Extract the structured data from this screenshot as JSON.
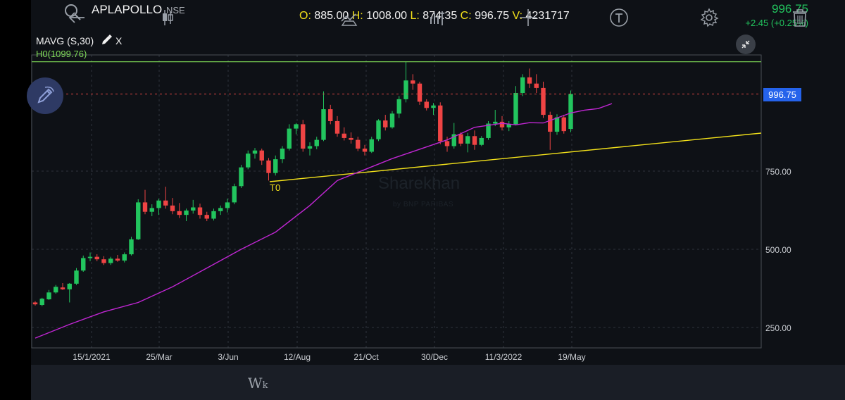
{
  "header": {
    "symbol": "APLAPOLLO",
    "exchange": "NSE",
    "ohlc": {
      "o_key": "O:",
      "o_val": "885.00",
      "h_key": "H:",
      "h_val": "1008.00",
      "l_key": "L:",
      "l_val": "874.35",
      "c_key": "C:",
      "c_val": "996.75",
      "v_key": "V:",
      "v_val": "4231717"
    },
    "last_price": "996.75",
    "change": "+2.45 (+0.25%)"
  },
  "indicator": {
    "label": "MAVG (S,30)",
    "close_label": "X",
    "hline_label": "H0(1099.76)",
    "trendline_label": "T0"
  },
  "watermark": {
    "brand": "Sharekhan",
    "sub": "by BNP PARIBAS"
  },
  "price_axis": {
    "current_price_tag": "996.75",
    "ticks": [
      "750.00",
      "500.00",
      "250.00"
    ]
  },
  "time_axis": {
    "ticks": [
      "15/1/2021",
      "25/Mar",
      "3/Jun",
      "12/Aug",
      "21/Oct",
      "30/Dec",
      "11/3/2022",
      "19/May"
    ]
  },
  "colors": {
    "up": "#22c55e",
    "down": "#ef4444",
    "mavg": "#c026d3",
    "hline": "#7ed957",
    "trendline": "#f4e21a",
    "price_tag": "#2563eb"
  },
  "toolbar": {
    "icons": [
      "back-arrow-icon",
      "candlestick-icon",
      "weekly-interval-icon",
      "drawing-tools-icon",
      "indicators-icon",
      "crosshair-icon",
      "text-tool-icon",
      "settings-gear-icon",
      "delete-trash-icon"
    ],
    "interval_main": "W",
    "interval_sub": "k"
  },
  "chart_data": {
    "type": "candlestick",
    "y_axis_ticks": [
      250,
      500,
      750
    ],
    "x_axis_ticks": [
      "15/1/2021",
      "25/Mar",
      "3/Jun",
      "12/Aug",
      "21/Oct",
      "30/Dec",
      "11/3/2022",
      "19/May"
    ],
    "last_close": 996.75,
    "horizontal_line": 1099.76,
    "candles": [
      {
        "o": 330,
        "h": 334,
        "l": 320,
        "c": 324
      },
      {
        "o": 322,
        "h": 345,
        "l": 318,
        "c": 342
      },
      {
        "o": 340,
        "h": 370,
        "l": 338,
        "c": 362
      },
      {
        "o": 362,
        "h": 386,
        "l": 358,
        "c": 380
      },
      {
        "o": 378,
        "h": 392,
        "l": 370,
        "c": 372
      },
      {
        "o": 372,
        "h": 392,
        "l": 330,
        "c": 390
      },
      {
        "o": 390,
        "h": 440,
        "l": 386,
        "c": 432
      },
      {
        "o": 432,
        "h": 480,
        "l": 428,
        "c": 472
      },
      {
        "o": 472,
        "h": 490,
        "l": 462,
        "c": 476
      },
      {
        "o": 476,
        "h": 484,
        "l": 462,
        "c": 468
      },
      {
        "o": 468,
        "h": 478,
        "l": 450,
        "c": 456
      },
      {
        "o": 456,
        "h": 476,
        "l": 450,
        "c": 470
      },
      {
        "o": 470,
        "h": 482,
        "l": 460,
        "c": 464
      },
      {
        "o": 464,
        "h": 490,
        "l": 458,
        "c": 484
      },
      {
        "o": 484,
        "h": 540,
        "l": 480,
        "c": 532
      },
      {
        "o": 532,
        "h": 660,
        "l": 530,
        "c": 650
      },
      {
        "o": 650,
        "h": 690,
        "l": 612,
        "c": 620
      },
      {
        "o": 620,
        "h": 644,
        "l": 606,
        "c": 632
      },
      {
        "o": 632,
        "h": 662,
        "l": 610,
        "c": 656
      },
      {
        "o": 656,
        "h": 700,
        "l": 630,
        "c": 640
      },
      {
        "o": 640,
        "h": 664,
        "l": 612,
        "c": 622
      },
      {
        "o": 622,
        "h": 648,
        "l": 600,
        "c": 610
      },
      {
        "o": 610,
        "h": 630,
        "l": 590,
        "c": 624
      },
      {
        "o": 624,
        "h": 658,
        "l": 614,
        "c": 634
      },
      {
        "o": 634,
        "h": 646,
        "l": 598,
        "c": 610
      },
      {
        "o": 610,
        "h": 620,
        "l": 590,
        "c": 598
      },
      {
        "o": 598,
        "h": 630,
        "l": 592,
        "c": 622
      },
      {
        "o": 622,
        "h": 640,
        "l": 610,
        "c": 632
      },
      {
        "o": 632,
        "h": 662,
        "l": 618,
        "c": 650
      },
      {
        "o": 650,
        "h": 710,
        "l": 644,
        "c": 702
      },
      {
        "o": 702,
        "h": 770,
        "l": 696,
        "c": 762
      },
      {
        "o": 762,
        "h": 816,
        "l": 756,
        "c": 806
      },
      {
        "o": 806,
        "h": 824,
        "l": 790,
        "c": 816
      },
      {
        "o": 816,
        "h": 822,
        "l": 770,
        "c": 784
      },
      {
        "o": 784,
        "h": 792,
        "l": 720,
        "c": 744
      },
      {
        "o": 744,
        "h": 800,
        "l": 736,
        "c": 788
      },
      {
        "o": 788,
        "h": 830,
        "l": 776,
        "c": 822
      },
      {
        "o": 822,
        "h": 900,
        "l": 816,
        "c": 886
      },
      {
        "o": 886,
        "h": 904,
        "l": 868,
        "c": 900
      },
      {
        "o": 900,
        "h": 914,
        "l": 812,
        "c": 822
      },
      {
        "o": 822,
        "h": 842,
        "l": 800,
        "c": 830
      },
      {
        "o": 830,
        "h": 860,
        "l": 820,
        "c": 850
      },
      {
        "o": 850,
        "h": 1005,
        "l": 846,
        "c": 948
      },
      {
        "o": 948,
        "h": 962,
        "l": 900,
        "c": 910
      },
      {
        "o": 910,
        "h": 926,
        "l": 860,
        "c": 870
      },
      {
        "o": 870,
        "h": 890,
        "l": 848,
        "c": 856
      },
      {
        "o": 856,
        "h": 874,
        "l": 838,
        "c": 850
      },
      {
        "o": 850,
        "h": 860,
        "l": 814,
        "c": 822
      },
      {
        "o": 822,
        "h": 834,
        "l": 800,
        "c": 812
      },
      {
        "o": 812,
        "h": 860,
        "l": 808,
        "c": 852
      },
      {
        "o": 852,
        "h": 916,
        "l": 846,
        "c": 912
      },
      {
        "o": 912,
        "h": 930,
        "l": 880,
        "c": 890
      },
      {
        "o": 890,
        "h": 942,
        "l": 886,
        "c": 934
      },
      {
        "o": 934,
        "h": 990,
        "l": 920,
        "c": 980
      },
      {
        "o": 980,
        "h": 1100,
        "l": 970,
        "c": 1040
      },
      {
        "o": 1040,
        "h": 1060,
        "l": 1010,
        "c": 1030
      },
      {
        "o": 1030,
        "h": 1036,
        "l": 962,
        "c": 972
      },
      {
        "o": 972,
        "h": 980,
        "l": 944,
        "c": 952
      },
      {
        "o": 952,
        "h": 968,
        "l": 930,
        "c": 960
      },
      {
        "o": 960,
        "h": 970,
        "l": 836,
        "c": 846
      },
      {
        "o": 846,
        "h": 860,
        "l": 812,
        "c": 830
      },
      {
        "o": 830,
        "h": 904,
        "l": 822,
        "c": 868
      },
      {
        "o": 868,
        "h": 874,
        "l": 830,
        "c": 838
      },
      {
        "o": 838,
        "h": 872,
        "l": 810,
        "c": 862
      },
      {
        "o": 862,
        "h": 880,
        "l": 818,
        "c": 834
      },
      {
        "o": 834,
        "h": 862,
        "l": 830,
        "c": 856
      },
      {
        "o": 856,
        "h": 910,
        "l": 850,
        "c": 902
      },
      {
        "o": 902,
        "h": 946,
        "l": 894,
        "c": 908
      },
      {
        "o": 908,
        "h": 926,
        "l": 880,
        "c": 890
      },
      {
        "o": 890,
        "h": 910,
        "l": 878,
        "c": 900
      },
      {
        "o": 900,
        "h": 1022,
        "l": 896,
        "c": 1000
      },
      {
        "o": 1000,
        "h": 1060,
        "l": 990,
        "c": 1050
      },
      {
        "o": 1050,
        "h": 1078,
        "l": 1016,
        "c": 1030
      },
      {
        "o": 1030,
        "h": 1060,
        "l": 1000,
        "c": 1016
      },
      {
        "o": 1016,
        "h": 1036,
        "l": 920,
        "c": 930
      },
      {
        "o": 930,
        "h": 940,
        "l": 818,
        "c": 876
      },
      {
        "o": 876,
        "h": 932,
        "l": 866,
        "c": 922
      },
      {
        "o": 922,
        "h": 930,
        "l": 870,
        "c": 878
      },
      {
        "o": 885,
        "h": 1008,
        "l": 874.35,
        "c": 996.75
      }
    ],
    "mavg_series": [
      {
        "name": "MAVG (S,30)",
        "points": [
          [
            0,
            216
          ],
          [
            5,
            260
          ],
          [
            10,
            300
          ],
          [
            15,
            330
          ],
          [
            20,
            380
          ],
          [
            25,
            440
          ],
          [
            30,
            500
          ],
          [
            35,
            555
          ],
          [
            40,
            640
          ],
          [
            44,
            720
          ],
          [
            48,
            755
          ],
          [
            52,
            790
          ],
          [
            56,
            820
          ],
          [
            60,
            850
          ],
          [
            64,
            890
          ],
          [
            68,
            903
          ],
          [
            70,
            898
          ],
          [
            72,
            905
          ],
          [
            74,
            904
          ],
          [
            76,
            920
          ],
          [
            78,
            936
          ],
          [
            80,
            945
          ],
          [
            82,
            950
          ],
          [
            84,
            966
          ]
        ]
      }
    ]
  }
}
